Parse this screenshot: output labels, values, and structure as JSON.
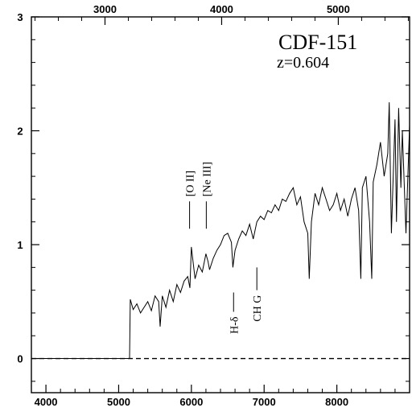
{
  "chart_data": {
    "type": "line",
    "title": "CDF-151",
    "subtitle": "z=0.604",
    "xlabel": "",
    "ylabel": "",
    "x_bottom": {
      "lim": [
        3800,
        9000
      ],
      "ticks": [
        4000,
        5000,
        6000,
        7000,
        8000
      ],
      "tick_labels": [
        "4000",
        "5000",
        "6000",
        "7000",
        "8000"
      ]
    },
    "x_top": {
      "lim": [
        2369,
        5611
      ],
      "ticks": [
        3000,
        4000,
        5000
      ],
      "tick_labels": [
        "3000",
        "4000",
        "5000"
      ]
    },
    "ylim": [
      -0.3,
      3.0
    ],
    "y_ticks": [
      0,
      1,
      2,
      3
    ],
    "y_tick_labels": [
      "0",
      "1",
      "2",
      "3"
    ],
    "zero_line": {
      "y": 0,
      "style": "dashed"
    },
    "series": [
      {
        "x": [
          3800,
          5150,
          5160,
          5200,
          5250,
          5300,
          5350,
          5400,
          5450,
          5500,
          5550,
          5570,
          5600,
          5650,
          5700,
          5750,
          5800,
          5850,
          5900,
          5950,
          5980,
          6000,
          6050,
          6100,
          6150,
          6200,
          6230,
          6250,
          6300,
          6350,
          6400,
          6450,
          6500,
          6550,
          6570,
          6600,
          6650,
          6700,
          6750,
          6800,
          6850,
          6900,
          6950,
          7000,
          7050,
          7100,
          7150,
          7200,
          7250,
          7300,
          7350,
          7400,
          7450,
          7500,
          7550,
          7600,
          7620,
          7650,
          7700,
          7750,
          7800,
          7850,
          7900,
          7950,
          8000,
          8050,
          8100,
          8150,
          8200,
          8250,
          8300,
          8330,
          8350,
          8400,
          8450,
          8480,
          8500,
          8550,
          8600,
          8650,
          8700,
          8720,
          8750,
          8800,
          8820,
          8850,
          8880,
          8900,
          8950,
          9000
        ],
        "y": [
          0.0,
          0.0,
          0.52,
          0.43,
          0.48,
          0.4,
          0.45,
          0.5,
          0.42,
          0.55,
          0.5,
          0.28,
          0.55,
          0.45,
          0.6,
          0.5,
          0.65,
          0.58,
          0.68,
          0.72,
          0.62,
          0.98,
          0.7,
          0.82,
          0.76,
          0.92,
          0.85,
          0.78,
          0.88,
          0.95,
          1.0,
          1.08,
          1.1,
          1.02,
          0.8,
          0.95,
          1.05,
          1.12,
          1.08,
          1.18,
          1.05,
          1.2,
          1.25,
          1.22,
          1.3,
          1.28,
          1.35,
          1.3,
          1.4,
          1.38,
          1.45,
          1.5,
          1.35,
          1.42,
          1.2,
          1.1,
          0.7,
          1.2,
          1.45,
          1.35,
          1.5,
          1.4,
          1.3,
          1.35,
          1.45,
          1.3,
          1.4,
          1.25,
          1.4,
          1.5,
          1.3,
          0.7,
          1.5,
          1.6,
          1.2,
          0.7,
          1.55,
          1.7,
          1.9,
          1.6,
          1.8,
          2.25,
          1.1,
          2.1,
          1.2,
          2.2,
          1.5,
          2.0,
          1.1,
          2.05
        ]
      }
    ],
    "line_identifications": [
      {
        "label": "[O II]",
        "x": 5975,
        "tick_y": [
          1.14,
          1.38
        ],
        "side": "above"
      },
      {
        "label": "[Ne III]",
        "x": 6205,
        "tick_y": [
          1.14,
          1.38
        ],
        "side": "above"
      },
      {
        "label": "H-δ",
        "x": 6580,
        "tick_y": [
          0.41,
          0.58
        ],
        "side": "below"
      },
      {
        "label": "CH G",
        "x": 6900,
        "tick_y": [
          0.6,
          0.8
        ],
        "side": "below"
      }
    ]
  }
}
